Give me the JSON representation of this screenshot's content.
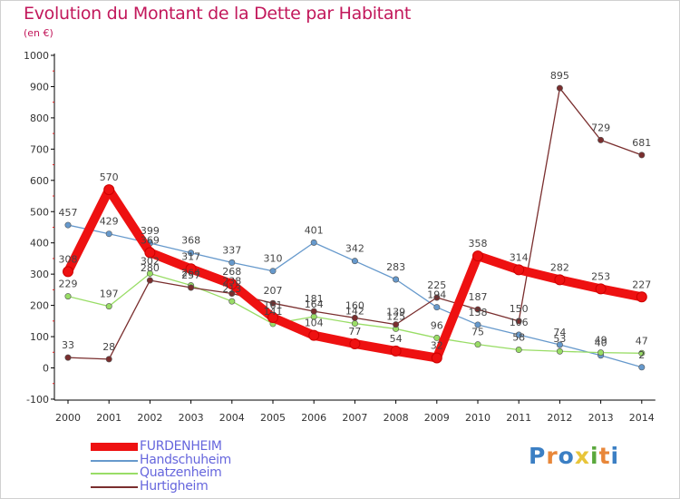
{
  "header": {
    "title": "Evolution du Montant de la Dette par Habitant",
    "subtitle": "(en €)"
  },
  "logo": {
    "letters": [
      "P",
      "r",
      "o",
      "x",
      "i",
      "t",
      "i"
    ],
    "colors": [
      "#3b7fc4",
      "#e8873a",
      "#3b7fc4",
      "#e8c53a",
      "#5aa83c",
      "#e8873a",
      "#3b7fc4"
    ]
  },
  "chart_data": {
    "type": "line",
    "title": "Evolution du Montant de la Dette par Habitant",
    "subtitle": "(en €)",
    "x": [
      "2000",
      "2001",
      "2002",
      "2003",
      "2004",
      "2005",
      "2006",
      "2007",
      "2008",
      "2009",
      "2010",
      "2011",
      "2012",
      "2013",
      "2014"
    ],
    "ylim": [
      -100,
      1000
    ],
    "yticks": [
      "-100",
      "0",
      "100",
      "200",
      "300",
      "400",
      "500",
      "600",
      "700",
      "800",
      "900",
      "1000"
    ],
    "grid": false,
    "legend_position": "bottom-left",
    "series": [
      {
        "name": "FURDENHEIM",
        "color": "#ee1111",
        "values": [
          308,
          570,
          369,
          317,
          268,
          161,
          104,
          77,
          54,
          32,
          358,
          314,
          282,
          253,
          227
        ],
        "labels": [
          "308",
          "570",
          "369",
          "317",
          "268",
          "161",
          "104",
          "77",
          "54",
          "32",
          "358",
          "314",
          "282",
          "253",
          "227"
        ]
      },
      {
        "name": "Handschuheim",
        "color": "#6699cc",
        "values": [
          457,
          429,
          399,
          368,
          337,
          310,
          401,
          342,
          283,
          194,
          138,
          106,
          74,
          40,
          2
        ],
        "labels": [
          "457",
          "429",
          "399",
          "368",
          "337",
          "310",
          "401",
          "342",
          "283",
          "194",
          "138",
          "106",
          "74",
          "40",
          "2"
        ]
      },
      {
        "name": "Quatzenheim",
        "color": "#99dd66",
        "values": [
          229,
          197,
          302,
          264,
          213,
          141,
          164,
          142,
          125,
          96,
          75,
          58,
          53,
          49,
          47
        ],
        "labels": [
          "229",
          "197",
          "302",
          "264",
          "213",
          "141",
          "164",
          "142",
          "125",
          "96",
          "75",
          "58",
          "53",
          "49",
          "47"
        ]
      },
      {
        "name": "Hurtigheim",
        "color": "#7a2e2e",
        "values": [
          33,
          28,
          280,
          257,
          238,
          207,
          181,
          160,
          139,
          225,
          187,
          150,
          895,
          729,
          681
        ],
        "labels": [
          "33",
          "28",
          "280",
          "257",
          "238",
          "207",
          "181",
          "160",
          "139",
          "225",
          "187",
          "150",
          "895",
          "729",
          "681"
        ]
      }
    ]
  }
}
